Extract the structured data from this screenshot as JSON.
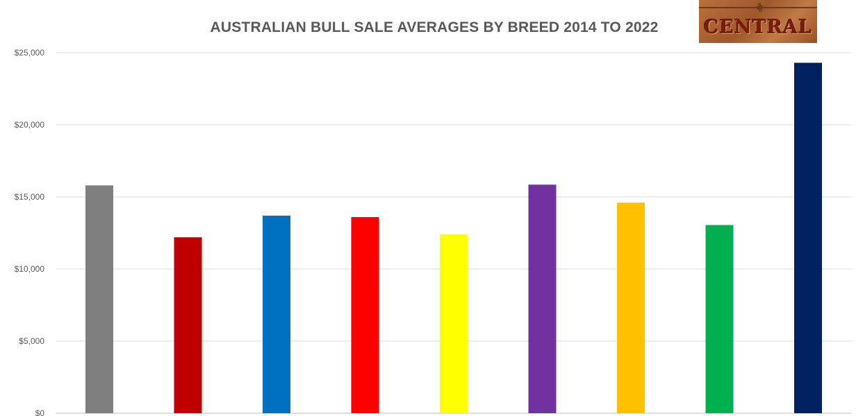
{
  "chart_data": {
    "type": "bar",
    "title": "AUSTRALIAN BULL SALE AVERAGES BY BREED 2014 TO 2022",
    "xlabel": "",
    "ylabel": "",
    "ylim": [
      0,
      25000
    ],
    "yticks": [
      0,
      5000,
      10000,
      15000,
      20000,
      25000
    ],
    "ytick_labels": [
      "$0",
      "$5,000",
      "$10,000",
      "$15,000",
      "$20,000",
      "$25,000"
    ],
    "grid": true,
    "values": [
      15800,
      12200,
      13700,
      13600,
      12400,
      15850,
      14600,
      13050,
      24300
    ],
    "colors": [
      "#7f7f7f",
      "#c00000",
      "#0070c0",
      "#ff0000",
      "#ffff00",
      "#7030a0",
      "#ffc000",
      "#00b050",
      "#002060"
    ]
  },
  "logo": {
    "text": "CENTRAL"
  }
}
